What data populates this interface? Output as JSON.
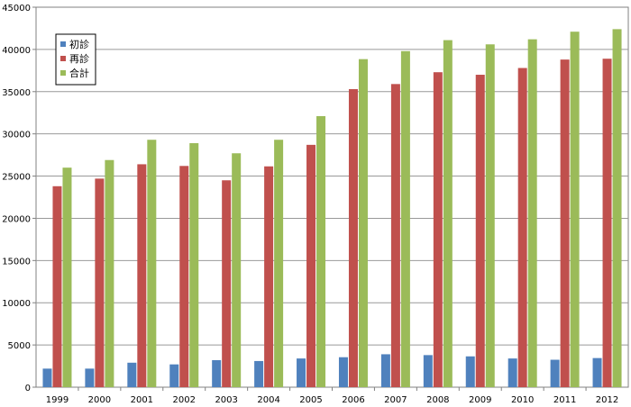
{
  "chart_data": {
    "type": "bar",
    "title": "",
    "xlabel": "",
    "ylabel": "",
    "ylim": [
      0,
      45000
    ],
    "ytick_step": 5000,
    "grid": true,
    "legend_position": "top-left",
    "categories": [
      "1999",
      "2000",
      "2001",
      "2002",
      "2003",
      "2004",
      "2005",
      "2006",
      "2007",
      "2008",
      "2009",
      "2010",
      "2011",
      "2012"
    ],
    "series": [
      {
        "name": "初診",
        "color": "#4F81BD",
        "values": [
          2200,
          2200,
          2900,
          2700,
          3200,
          3100,
          3400,
          3550,
          3900,
          3800,
          3650,
          3400,
          3250,
          3450
        ]
      },
      {
        "name": "再診",
        "color": "#C0504D",
        "values": [
          23800,
          24700,
          26400,
          26200,
          24500,
          26150,
          28700,
          35300,
          35900,
          37300,
          37000,
          37800,
          38800,
          38900
        ]
      },
      {
        "name": "合計",
        "color": "#9BBB59",
        "values": [
          26000,
          26900,
          29300,
          28900,
          27700,
          29300,
          32100,
          38850,
          39800,
          41100,
          40600,
          41200,
          42100,
          42400
        ]
      }
    ]
  }
}
